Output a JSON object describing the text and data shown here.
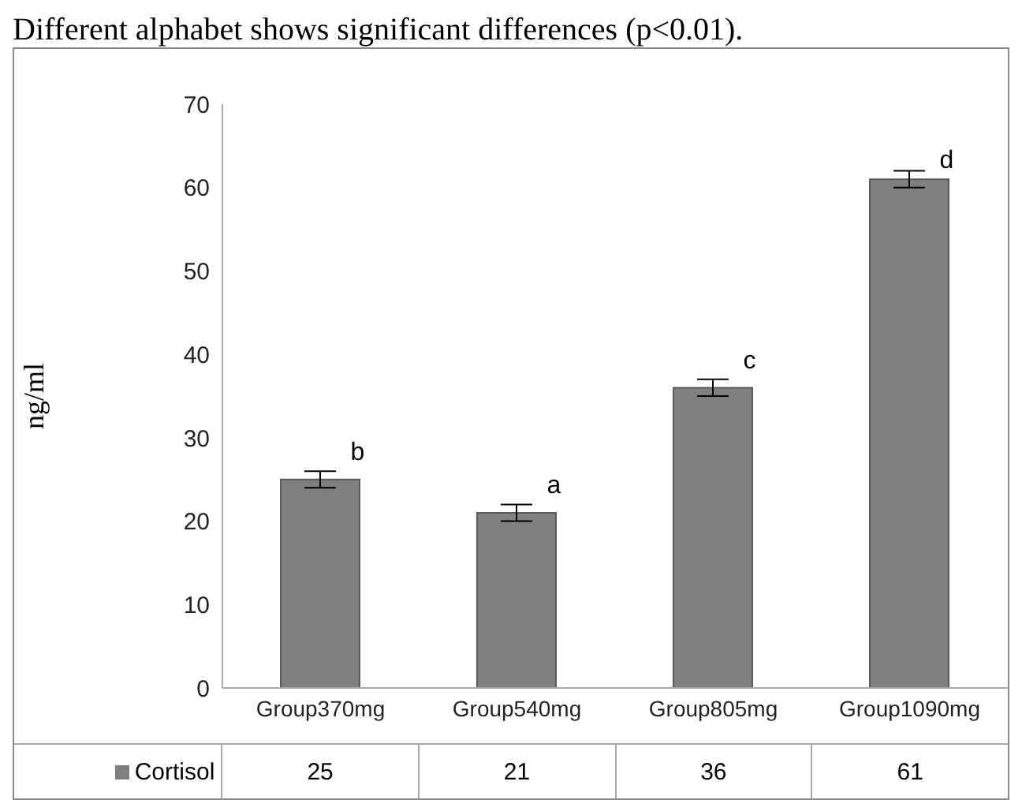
{
  "chart_data": {
    "type": "bar",
    "title": "Different alphabet shows significant differences (p<0.01).",
    "ylabel": "ng/ml",
    "categories": [
      "Group370mg",
      "Group540mg",
      "Group805mg",
      "Group1090mg"
    ],
    "series": [
      {
        "name": "Cortisol",
        "color": "#808080",
        "values": [
          25,
          21,
          36,
          61
        ],
        "errors": [
          1,
          1,
          1,
          1
        ]
      }
    ],
    "ylim": [
      0,
      70
    ],
    "yticks": [
      0,
      10,
      20,
      30,
      40,
      50,
      60,
      70
    ],
    "grid": false,
    "legend": "bottom",
    "data_labels": true,
    "annotations": [
      {
        "text": "b",
        "x": "Group370mg",
        "y": 26
      },
      {
        "text": "a",
        "x": "Group540mg",
        "y": 22
      },
      {
        "text": "c",
        "x": "Group805mg",
        "y": 37
      },
      {
        "text": "d",
        "x": "Group1090mg",
        "y": 61
      }
    ]
  }
}
